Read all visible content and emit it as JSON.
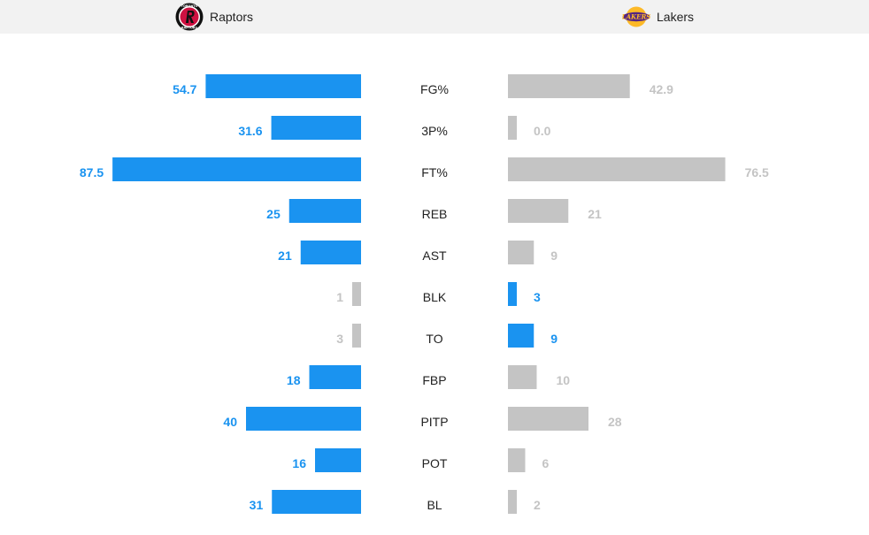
{
  "teams": {
    "left": {
      "name": "Raptors",
      "logo_icon": "raptors-logo-icon",
      "logo_text": "TORONTO RAPTORS"
    },
    "right": {
      "name": "Lakers",
      "logo_icon": "lakers-logo-icon",
      "logo_text": "LAKERS"
    }
  },
  "colors": {
    "leader": "#1a93f0",
    "other": "#c4c4c4",
    "header_bg": "#f2f2f2"
  },
  "chart_data": {
    "type": "bar",
    "categories": [
      "FG%",
      "3P%",
      "FT%",
      "REB",
      "AST",
      "BLK",
      "TO",
      "FBP",
      "PITP",
      "POT",
      "BL"
    ],
    "series": [
      {
        "name": "Raptors",
        "values": [
          54.7,
          31.6,
          87.5,
          25,
          21,
          1,
          3,
          18,
          40,
          16,
          31
        ],
        "labels": [
          "54.7",
          "31.6",
          "87.5",
          "25",
          "21",
          "1",
          "3",
          "18",
          "40",
          "16",
          "31"
        ]
      },
      {
        "name": "Lakers",
        "values": [
          42.9,
          0.0,
          76.5,
          21,
          9,
          3,
          9,
          10,
          28,
          6,
          2
        ],
        "labels": [
          "42.9",
          "0.0",
          "76.5",
          "21",
          "9",
          "3",
          "9",
          "10",
          "28",
          "6",
          "2"
        ]
      }
    ],
    "highlight": [
      "left",
      "left",
      "left",
      "left",
      "left",
      "right",
      "right",
      "left",
      "left",
      "left",
      "left"
    ]
  }
}
